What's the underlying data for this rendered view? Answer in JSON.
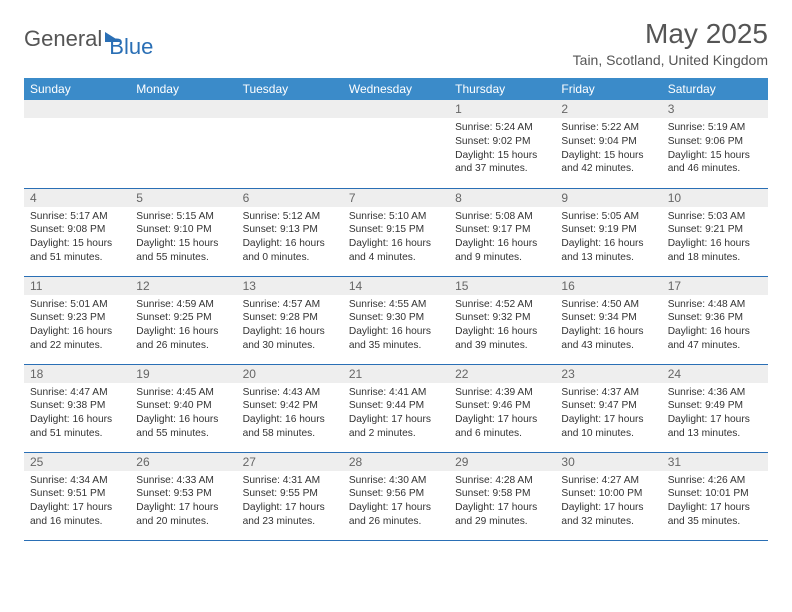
{
  "logo": {
    "text1": "General",
    "text2": "Blue"
  },
  "title": "May 2025",
  "subtitle": "Tain, Scotland, United Kingdom",
  "weekdays": [
    "Sunday",
    "Monday",
    "Tuesday",
    "Wednesday",
    "Thursday",
    "Friday",
    "Saturday"
  ],
  "colors": {
    "header_bg": "#3b8bc9",
    "row_divider": "#2a6fb5",
    "daynum_bg": "#eeeeee",
    "text": "#333333",
    "title": "#555555",
    "logo_blue": "#2a6fb5"
  },
  "days": {
    "1": {
      "sunrise": "5:24 AM",
      "sunset": "9:02 PM",
      "daylight": "15 hours and 37 minutes."
    },
    "2": {
      "sunrise": "5:22 AM",
      "sunset": "9:04 PM",
      "daylight": "15 hours and 42 minutes."
    },
    "3": {
      "sunrise": "5:19 AM",
      "sunset": "9:06 PM",
      "daylight": "15 hours and 46 minutes."
    },
    "4": {
      "sunrise": "5:17 AM",
      "sunset": "9:08 PM",
      "daylight": "15 hours and 51 minutes."
    },
    "5": {
      "sunrise": "5:15 AM",
      "sunset": "9:10 PM",
      "daylight": "15 hours and 55 minutes."
    },
    "6": {
      "sunrise": "5:12 AM",
      "sunset": "9:13 PM",
      "daylight": "16 hours and 0 minutes."
    },
    "7": {
      "sunrise": "5:10 AM",
      "sunset": "9:15 PM",
      "daylight": "16 hours and 4 minutes."
    },
    "8": {
      "sunrise": "5:08 AM",
      "sunset": "9:17 PM",
      "daylight": "16 hours and 9 minutes."
    },
    "9": {
      "sunrise": "5:05 AM",
      "sunset": "9:19 PM",
      "daylight": "16 hours and 13 minutes."
    },
    "10": {
      "sunrise": "5:03 AM",
      "sunset": "9:21 PM",
      "daylight": "16 hours and 18 minutes."
    },
    "11": {
      "sunrise": "5:01 AM",
      "sunset": "9:23 PM",
      "daylight": "16 hours and 22 minutes."
    },
    "12": {
      "sunrise": "4:59 AM",
      "sunset": "9:25 PM",
      "daylight": "16 hours and 26 minutes."
    },
    "13": {
      "sunrise": "4:57 AM",
      "sunset": "9:28 PM",
      "daylight": "16 hours and 30 minutes."
    },
    "14": {
      "sunrise": "4:55 AM",
      "sunset": "9:30 PM",
      "daylight": "16 hours and 35 minutes."
    },
    "15": {
      "sunrise": "4:52 AM",
      "sunset": "9:32 PM",
      "daylight": "16 hours and 39 minutes."
    },
    "16": {
      "sunrise": "4:50 AM",
      "sunset": "9:34 PM",
      "daylight": "16 hours and 43 minutes."
    },
    "17": {
      "sunrise": "4:48 AM",
      "sunset": "9:36 PM",
      "daylight": "16 hours and 47 minutes."
    },
    "18": {
      "sunrise": "4:47 AM",
      "sunset": "9:38 PM",
      "daylight": "16 hours and 51 minutes."
    },
    "19": {
      "sunrise": "4:45 AM",
      "sunset": "9:40 PM",
      "daylight": "16 hours and 55 minutes."
    },
    "20": {
      "sunrise": "4:43 AM",
      "sunset": "9:42 PM",
      "daylight": "16 hours and 58 minutes."
    },
    "21": {
      "sunrise": "4:41 AM",
      "sunset": "9:44 PM",
      "daylight": "17 hours and 2 minutes."
    },
    "22": {
      "sunrise": "4:39 AM",
      "sunset": "9:46 PM",
      "daylight": "17 hours and 6 minutes."
    },
    "23": {
      "sunrise": "4:37 AM",
      "sunset": "9:47 PM",
      "daylight": "17 hours and 10 minutes."
    },
    "24": {
      "sunrise": "4:36 AM",
      "sunset": "9:49 PM",
      "daylight": "17 hours and 13 minutes."
    },
    "25": {
      "sunrise": "4:34 AM",
      "sunset": "9:51 PM",
      "daylight": "17 hours and 16 minutes."
    },
    "26": {
      "sunrise": "4:33 AM",
      "sunset": "9:53 PM",
      "daylight": "17 hours and 20 minutes."
    },
    "27": {
      "sunrise": "4:31 AM",
      "sunset": "9:55 PM",
      "daylight": "17 hours and 23 minutes."
    },
    "28": {
      "sunrise": "4:30 AM",
      "sunset": "9:56 PM",
      "daylight": "17 hours and 26 minutes."
    },
    "29": {
      "sunrise": "4:28 AM",
      "sunset": "9:58 PM",
      "daylight": "17 hours and 29 minutes."
    },
    "30": {
      "sunrise": "4:27 AM",
      "sunset": "10:00 PM",
      "daylight": "17 hours and 32 minutes."
    },
    "31": {
      "sunrise": "4:26 AM",
      "sunset": "10:01 PM",
      "daylight": "17 hours and 35 minutes."
    }
  },
  "layout": {
    "first_weekday_index": 4,
    "days_in_month": 31,
    "labels": {
      "sunrise": "Sunrise: ",
      "sunset": "Sunset: ",
      "daylight": "Daylight: "
    }
  }
}
